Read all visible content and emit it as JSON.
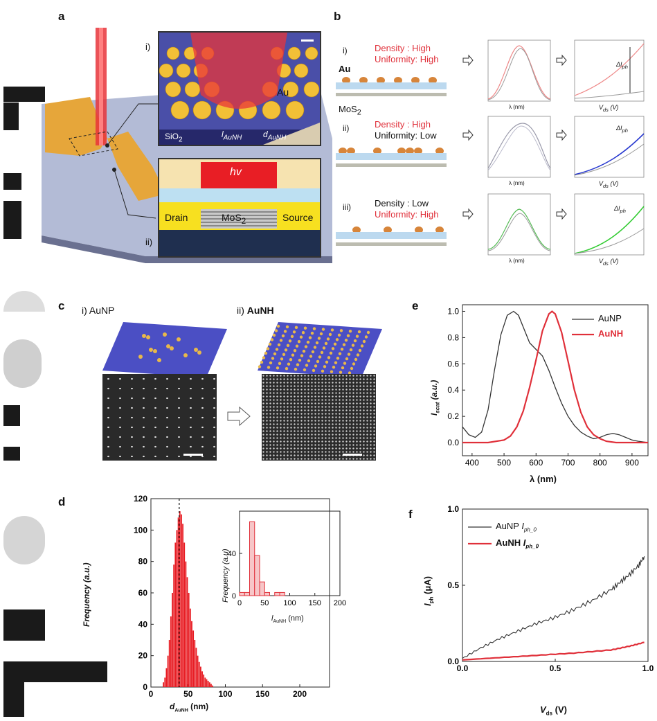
{
  "panel_labels": [
    "a",
    "b",
    "c",
    "d",
    "e",
    "f"
  ],
  "panel_a": {
    "inset_i_label": "i)",
    "inset_ii_label": "ii)",
    "au": "Au",
    "sio2": "SiO",
    "sio2_sub": "2",
    "l_label": "l",
    "l_sub": "AuNH",
    "d_label": "d",
    "d_sub": "AuNH",
    "hv": "hv",
    "drain": "Drain",
    "mos2": "MoS",
    "mos2_sub": "2",
    "source": "Source"
  },
  "panel_b": {
    "rows": [
      {
        "roman": "i)",
        "density": "Density : High",
        "uniformity": "Uniformity: High"
      },
      {
        "roman": "ii)",
        "density": "Density : High",
        "uniformity": "Uniformity: Low"
      },
      {
        "roman": "iii)",
        "density": "Density : Low",
        "uniformity": "Uniformity: High"
      }
    ],
    "au": "Au",
    "mos2": "MoS",
    "mos2_sub": "2",
    "spec_y": "I",
    "spec_y_sub": "scat",
    "spec_y_unit": "(a.u.)",
    "spec_x": "λ (nm)",
    "iv_y": "I",
    "iv_y_sub": "ph",
    "iv_y_unit": "(μA)",
    "iv_x": "V",
    "iv_x_sub": "ds",
    "iv_x_unit": "(V)",
    "delta": "ΔI",
    "delta_sub": "ph"
  },
  "panel_c": {
    "left_label": "i) AuNP",
    "right_prefix": "ii) ",
    "right_label": "AuNH"
  },
  "colors": {
    "red": "#e0303a",
    "blue_substrate": "#4b4fc4",
    "gold": "#e8b84a"
  },
  "chart_data": [
    {
      "panel": "d",
      "type": "bar",
      "xlabel": "d",
      "xlabel_sub": "AuNH",
      "xlabel_unit": "(nm)",
      "ylabel": "Frequency (a.u.)",
      "xlim": [
        0,
        240
      ],
      "ylim": [
        0,
        120
      ],
      "xticks": [
        "0",
        "50",
        "100",
        "150",
        "200"
      ],
      "yticks": [
        "0",
        "20",
        "40",
        "60",
        "80",
        "100",
        "120"
      ],
      "bin_width": 2,
      "x": [
        16,
        18,
        20,
        22,
        24,
        26,
        28,
        30,
        32,
        34,
        36,
        38,
        40,
        42,
        44,
        46,
        48,
        50,
        52,
        54,
        56,
        58,
        60,
        62,
        64,
        66,
        68,
        70,
        72,
        74,
        76,
        78,
        80,
        82
      ],
      "values": [
        3,
        6,
        12,
        20,
        30,
        45,
        60,
        78,
        92,
        100,
        108,
        112,
        110,
        104,
        92,
        80,
        70,
        60,
        50,
        42,
        36,
        30,
        25,
        20,
        16,
        13,
        10,
        8,
        6,
        5,
        4,
        3,
        2,
        1
      ],
      "marker_line": 38,
      "inset": {
        "type": "bar",
        "xlabel": "l",
        "xlabel_sub": "AuNH",
        "xlabel_unit": "(nm)",
        "ylabel": "Frequency (a.u)",
        "xlim": [
          0,
          200
        ],
        "ylim": [
          0,
          80
        ],
        "xticks": [
          "0",
          "50",
          "100",
          "150",
          "200"
        ],
        "yticks": [
          "0",
          "40"
        ],
        "bin_width": 10,
        "x": [
          0,
          10,
          20,
          30,
          40,
          50,
          60,
          70,
          80,
          90
        ],
        "values": [
          3,
          3,
          70,
          38,
          13,
          3,
          0,
          3,
          3,
          0
        ]
      }
    },
    {
      "panel": "e",
      "type": "line",
      "xlabel": "λ (nm)",
      "ylabel": "I",
      "ylabel_sub": "scat",
      "ylabel_unit": "(a.u.)",
      "xlim": [
        370,
        950
      ],
      "ylim": [
        -0.1,
        1.05
      ],
      "xticks": [
        "400",
        "500",
        "600",
        "700",
        "800",
        "900"
      ],
      "yticks": [
        "0.0",
        "0.2",
        "0.4",
        "0.6",
        "0.8",
        "1.0"
      ],
      "legend_position": "top-right",
      "series": [
        {
          "name": "AuNP",
          "color": "#333333",
          "x": [
            370,
            390,
            410,
            430,
            450,
            470,
            490,
            510,
            530,
            545,
            560,
            580,
            600,
            620,
            640,
            660,
            680,
            700,
            720,
            740,
            760,
            780,
            800,
            820,
            840,
            860,
            880,
            900,
            920,
            950
          ],
          "y": [
            0.12,
            0.06,
            0.04,
            0.08,
            0.25,
            0.55,
            0.82,
            0.97,
            1.0,
            0.97,
            0.88,
            0.76,
            0.71,
            0.66,
            0.55,
            0.42,
            0.3,
            0.2,
            0.13,
            0.08,
            0.05,
            0.03,
            0.04,
            0.06,
            0.07,
            0.06,
            0.04,
            0.02,
            0.01,
            0.0
          ]
        },
        {
          "name": "AuNH",
          "color": "#e0303a",
          "x": [
            370,
            400,
            450,
            500,
            520,
            540,
            560,
            580,
            600,
            620,
            640,
            650,
            660,
            680,
            700,
            720,
            740,
            760,
            780,
            800,
            820,
            850,
            900,
            950
          ],
          "y": [
            0.0,
            0.0,
            0.0,
            0.02,
            0.05,
            0.12,
            0.24,
            0.42,
            0.63,
            0.85,
            0.98,
            1.0,
            0.98,
            0.84,
            0.62,
            0.4,
            0.23,
            0.12,
            0.06,
            0.03,
            0.01,
            0.0,
            0.0,
            0.0
          ]
        }
      ]
    },
    {
      "panel": "f",
      "type": "line",
      "xlabel": "V",
      "xlabel_sub": "ds",
      "xlabel_unit": "(V)",
      "ylabel": "I",
      "ylabel_sub": "ph",
      "ylabel_unit": "(μA)",
      "xlim": [
        0,
        1.0
      ],
      "ylim": [
        0,
        1.0
      ],
      "xticks": [
        "0.0",
        "0.5",
        "1.0"
      ],
      "yticks": [
        "0.0",
        "0.5",
        "1.0"
      ],
      "legend_position": "top-left",
      "series": [
        {
          "name": "AuNP",
          "name_math": "I",
          "name_sub": "ph_0",
          "color": "#333333",
          "x": [
            0,
            0.1,
            0.2,
            0.3,
            0.4,
            0.5,
            0.6,
            0.7,
            0.8,
            0.85,
            0.9,
            0.95,
            0.98
          ],
          "y": [
            0.02,
            0.09,
            0.15,
            0.2,
            0.25,
            0.29,
            0.34,
            0.4,
            0.47,
            0.52,
            0.57,
            0.63,
            0.69
          ]
        },
        {
          "name": "AuNH",
          "name_math": "I",
          "name_sub": "ph_0",
          "color": "#e0303a",
          "x": [
            0,
            0.2,
            0.4,
            0.6,
            0.8,
            0.9,
            0.98
          ],
          "y": [
            0.01,
            0.025,
            0.04,
            0.055,
            0.075,
            0.1,
            0.125
          ]
        }
      ]
    }
  ]
}
